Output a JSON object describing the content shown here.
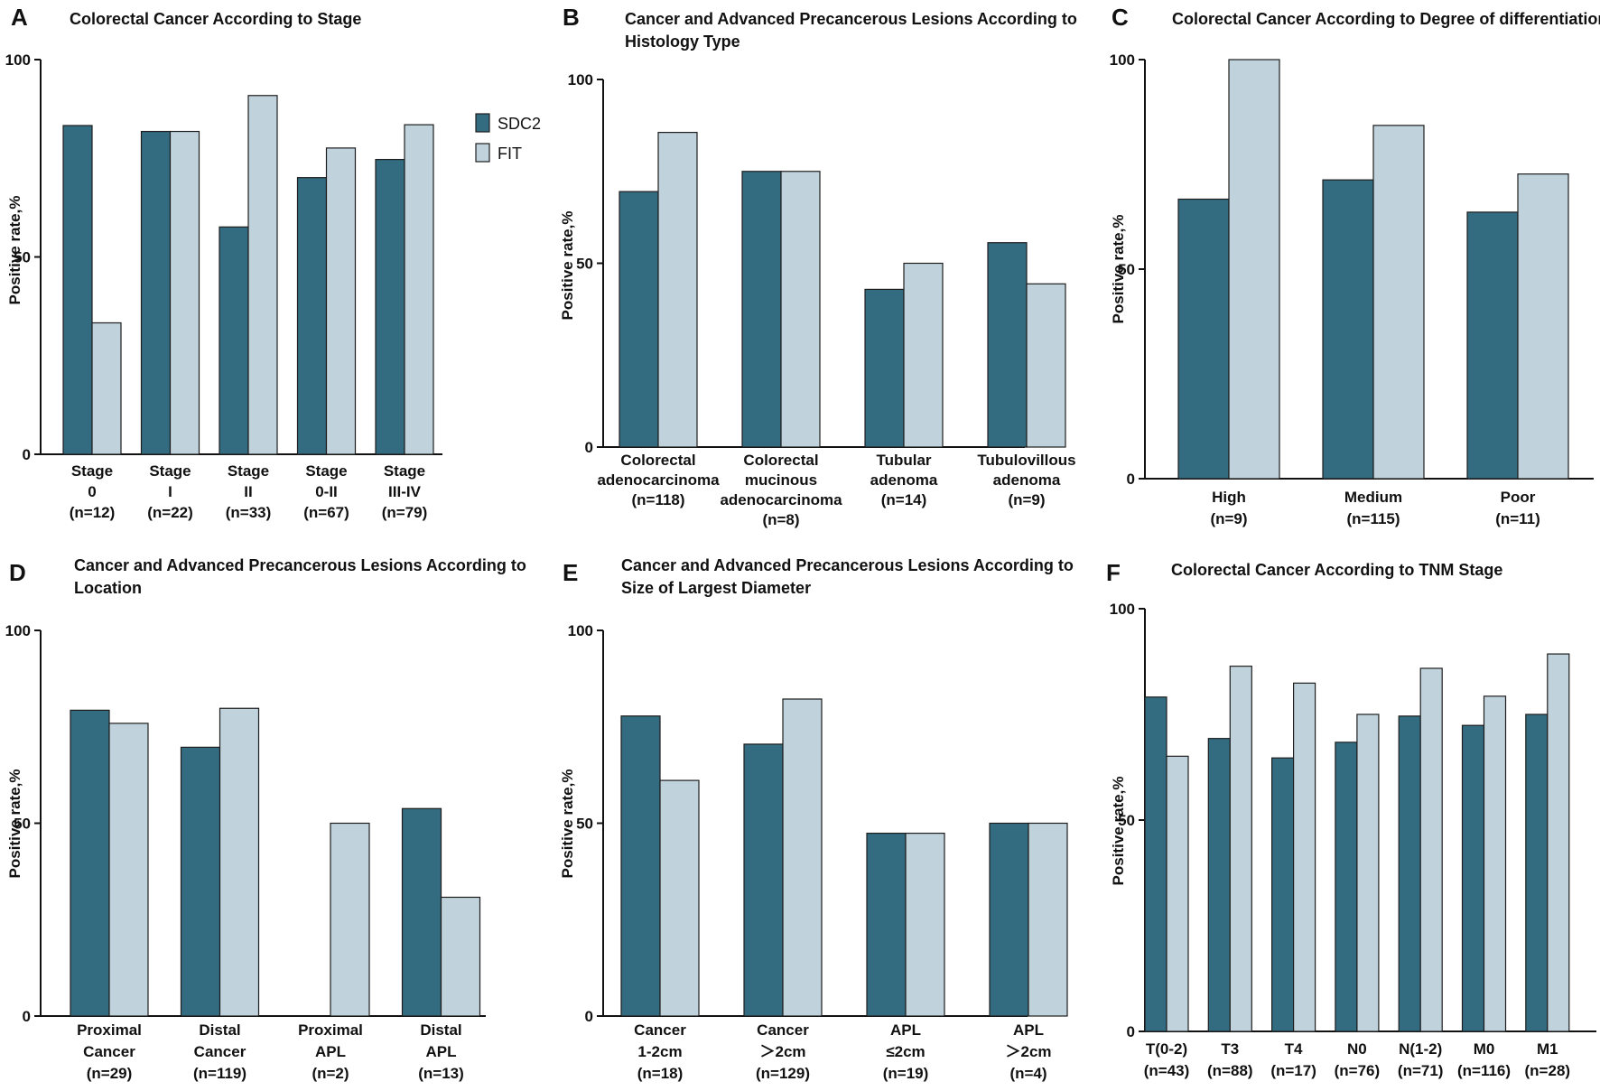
{
  "colors": {
    "SDC2": "#336b80",
    "FIT": "#c0d3dd"
  },
  "chart_data": [
    {
      "id": "A",
      "type": "bar",
      "panel_letter": "A",
      "title": "Colorectal Cancer According to Stage",
      "ylabel": "Positive rate,%",
      "ylim": [
        0,
        100
      ],
      "yticks": [
        "0",
        "50",
        "100"
      ],
      "legend": [
        "SDC2",
        "FIT"
      ],
      "categories": [
        [
          "Stage",
          "0",
          "(n=12)"
        ],
        [
          "Stage",
          "I",
          "(n=22)"
        ],
        [
          "Stage",
          "II",
          "(n=33)"
        ],
        [
          "Stage",
          "0-II",
          "(n=67)"
        ],
        [
          "Stage",
          "III-IV",
          "(n=79)"
        ]
      ],
      "series": [
        {
          "name": "SDC2",
          "values": [
            83.3,
            81.8,
            57.6,
            70.1,
            74.7
          ]
        },
        {
          "name": "FIT",
          "values": [
            33.3,
            81.8,
            90.9,
            77.6,
            83.5
          ]
        }
      ]
    },
    {
      "id": "B",
      "type": "bar",
      "panel_letter": "B",
      "title": [
        "Cancer and Advanced Precancerous Lesions According to",
        "Histology Type"
      ],
      "ylabel": "Positive rate,%",
      "ylim": [
        0,
        100
      ],
      "yticks": [
        "0",
        "50",
        "100"
      ],
      "categories": [
        [
          "Colorectal",
          "adenocarcinoma",
          "(n=118)"
        ],
        [
          "Colorectal",
          "mucinous",
          "adenocarcinoma",
          "(n=8)"
        ],
        [
          "Tubular",
          "adenoma",
          "(n=14)"
        ],
        [
          "Tubulovillous",
          "adenoma",
          "(n=9)"
        ]
      ],
      "series": [
        {
          "name": "SDC2",
          "values": [
            69.5,
            75.0,
            42.9,
            55.6
          ]
        },
        {
          "name": "FIT",
          "values": [
            85.6,
            75.0,
            50.0,
            44.4
          ]
        }
      ]
    },
    {
      "id": "C",
      "type": "bar",
      "panel_letter": "C",
      "title": "Colorectal Cancer According to Degree of differentiation",
      "ylabel": "Positive rate,%",
      "ylim": [
        0,
        100
      ],
      "yticks": [
        "0",
        "50",
        "100"
      ],
      "categories": [
        [
          "High",
          "(n=9)"
        ],
        [
          "Medium",
          "(n=115)"
        ],
        [
          "Poor",
          "(n=11)"
        ]
      ],
      "series": [
        {
          "name": "SDC2",
          "values": [
            66.7,
            71.3,
            63.6
          ]
        },
        {
          "name": "FIT",
          "values": [
            100.0,
            84.3,
            72.7
          ]
        }
      ]
    },
    {
      "id": "D",
      "type": "bar",
      "panel_letter": "D",
      "title": [
        "Cancer and Advanced Precancerous Lesions According to",
        "Location"
      ],
      "ylabel": "Positive rate,%",
      "ylim": [
        0,
        100
      ],
      "yticks": [
        "0",
        "50",
        "100"
      ],
      "categories": [
        [
          "Proximal",
          "Cancer",
          "(n=29)"
        ],
        [
          "Distal",
          "Cancer",
          "(n=119)"
        ],
        [
          "Proximal",
          "APL",
          "(n=2)"
        ],
        [
          "Distal",
          "APL",
          "(n=13)"
        ]
      ],
      "series": [
        {
          "name": "SDC2",
          "values": [
            79.3,
            69.7,
            0.0,
            53.8
          ]
        },
        {
          "name": "FIT",
          "values": [
            75.9,
            79.8,
            50.0,
            30.8
          ]
        }
      ]
    },
    {
      "id": "E",
      "type": "bar",
      "panel_letter": "E",
      "title": [
        "Cancer and Advanced Precancerous Lesions According to",
        "Size of Largest Diameter"
      ],
      "ylabel": "Positive rate,%",
      "ylim": [
        0,
        100
      ],
      "yticks": [
        "0",
        "50",
        "100"
      ],
      "categories": [
        [
          "Cancer",
          "1-2cm",
          "(n=18)"
        ],
        [
          "Cancer",
          "＞2cm",
          "(n=129)"
        ],
        [
          "APL",
          "≤2cm",
          "(n=19)"
        ],
        [
          "APL",
          "＞2cm",
          "(n=4)"
        ]
      ],
      "series": [
        {
          "name": "SDC2",
          "values": [
            77.8,
            70.5,
            47.4,
            50.0
          ]
        },
        {
          "name": "FIT",
          "values": [
            61.1,
            82.2,
            47.4,
            50.0
          ]
        }
      ]
    },
    {
      "id": "F",
      "type": "bar",
      "panel_letter": "F",
      "title": "Colorectal Cancer According to TNM Stage",
      "ylabel": "Positive rate,%",
      "ylim": [
        0,
        100
      ],
      "yticks": [
        "0",
        "50",
        "100"
      ],
      "categories": [
        [
          "T(0-2)",
          "(n=43)"
        ],
        [
          "T3",
          "(n=88)"
        ],
        [
          "T4",
          "(n=17)"
        ],
        [
          "N0",
          "(n=76)"
        ],
        [
          "N(1-2)",
          "(n=71)"
        ],
        [
          "M0",
          "(n=116)"
        ],
        [
          "M1",
          "(n=28)"
        ]
      ],
      "series": [
        {
          "name": "SDC2",
          "values": [
            79.1,
            69.3,
            64.7,
            68.4,
            74.6,
            72.4,
            75.0
          ]
        },
        {
          "name": "FIT",
          "values": [
            65.1,
            86.4,
            82.4,
            75.0,
            85.9,
            79.3,
            89.3
          ]
        }
      ]
    }
  ]
}
